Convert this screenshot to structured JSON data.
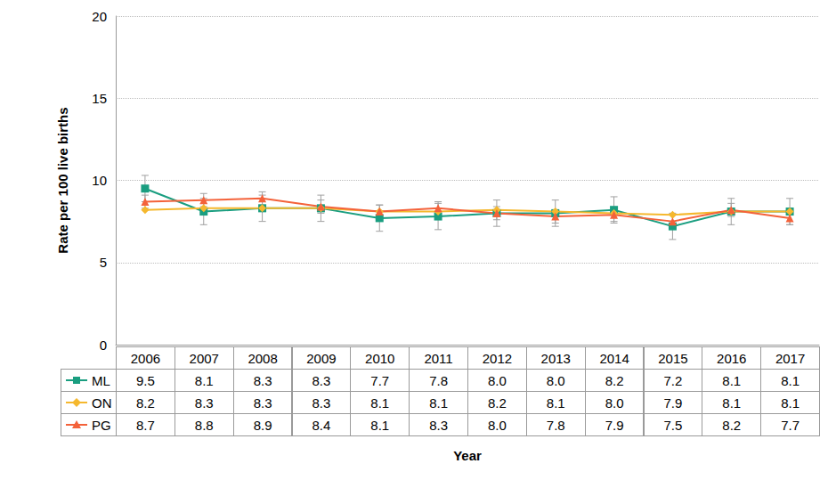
{
  "chart_data": {
    "type": "line",
    "y_label": "Rate per 100 live births",
    "x_label": "Year",
    "categories": [
      "2006",
      "2007",
      "2008",
      "2009",
      "2010",
      "2011",
      "2012",
      "2013",
      "2014",
      "2015",
      "2016",
      "2017"
    ],
    "series": [
      {
        "name": "ML",
        "color": "#1a9e80",
        "marker": "square",
        "line_style": "solid",
        "values": [
          9.5,
          8.1,
          8.3,
          8.3,
          7.7,
          7.8,
          8.0,
          8.0,
          8.2,
          7.2,
          8.1,
          8.1
        ],
        "value_labels": [
          "9.5",
          "8.1",
          "8.3",
          "8.3",
          "7.7",
          "7.8",
          "8.0",
          "8.0",
          "8.2",
          "7.2",
          "8.1",
          "8.1"
        ],
        "error_low": [
          8.7,
          7.3,
          7.5,
          7.5,
          6.9,
          7.0,
          7.2,
          7.2,
          7.4,
          6.4,
          7.3,
          7.3
        ],
        "error_high": [
          10.3,
          8.9,
          9.1,
          9.1,
          8.5,
          8.6,
          8.8,
          8.8,
          9.0,
          8.0,
          8.9,
          8.9
        ]
      },
      {
        "name": "ON",
        "color": "#f5b82e",
        "marker": "diamond",
        "line_style": "solid",
        "values": [
          8.2,
          8.3,
          8.3,
          8.3,
          8.1,
          8.1,
          8.2,
          8.1,
          8.0,
          7.9,
          8.1,
          8.1
        ],
        "value_labels": [
          "8.2",
          "8.3",
          "8.3",
          "8.3",
          "8.1",
          "8.1",
          "8.2",
          "8.1",
          "8.0",
          "7.9",
          "8.1",
          "8.1"
        ]
      },
      {
        "name": "PG",
        "color": "#f4623a",
        "marker": "triangle",
        "line_style": "solid",
        "values": [
          8.7,
          8.8,
          8.9,
          8.4,
          8.1,
          8.3,
          8.0,
          7.8,
          7.9,
          7.5,
          8.2,
          7.7
        ],
        "value_labels": [
          "8.7",
          "8.8",
          "8.9",
          "8.4",
          "8.1",
          "8.3",
          "8.0",
          "7.8",
          "7.9",
          "7.5",
          "8.2",
          "7.7"
        ],
        "error_low": [
          8.3,
          8.4,
          8.5,
          8.0,
          7.7,
          7.9,
          7.6,
          7.4,
          7.5,
          7.1,
          7.8,
          7.3
        ],
        "error_high": [
          9.1,
          9.2,
          9.3,
          8.8,
          8.5,
          8.7,
          8.4,
          8.2,
          8.3,
          7.9,
          8.6,
          8.1
        ]
      }
    ],
    "ylim": [
      0,
      20
    ],
    "yticks": [
      0,
      5,
      10,
      15,
      20
    ],
    "grid": true
  }
}
